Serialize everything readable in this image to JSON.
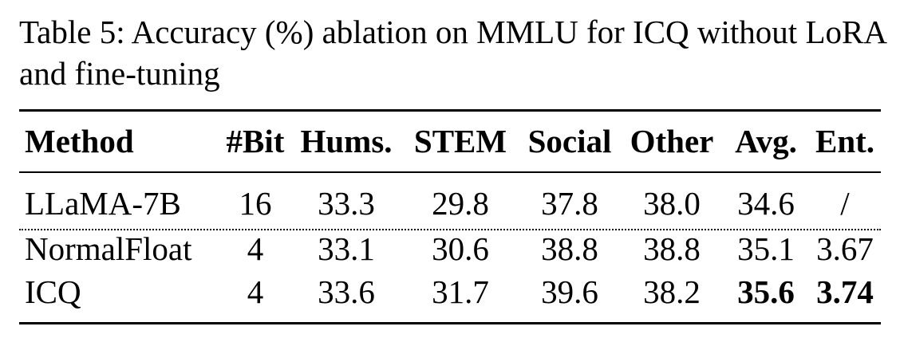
{
  "caption": "Table 5: Accuracy (%) ablation on MMLU for ICQ without LoRA and fine-tuning",
  "table": {
    "headers": [
      "Method",
      "#Bit",
      "Hums.",
      "STEM",
      "Social",
      "Other",
      "Avg.",
      "Ent."
    ],
    "rows": [
      [
        "LLaMA-7B",
        "16",
        "33.3",
        "29.8",
        "37.8",
        "38.0",
        "34.6",
        "/"
      ],
      [
        "NormalFloat",
        "4",
        "33.1",
        "30.6",
        "38.8",
        "38.8",
        "35.1",
        "3.67"
      ],
      [
        "ICQ",
        "4",
        "33.6",
        "31.7",
        "39.6",
        "38.2",
        "35.6",
        "3.74"
      ]
    ],
    "bold_cells": [
      "rows.2.6",
      "rows.2.7"
    ]
  }
}
